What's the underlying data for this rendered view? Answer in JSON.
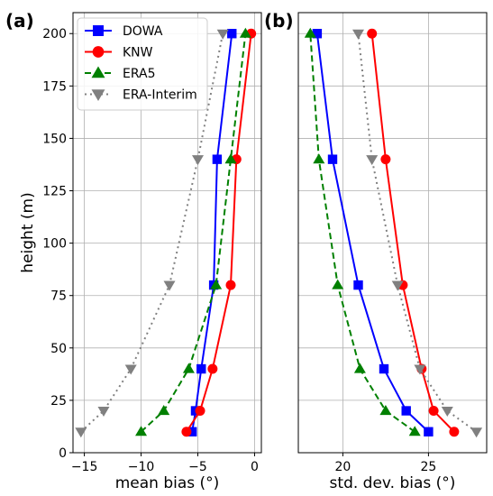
{
  "chart_data": [
    {
      "type": "line",
      "panel_label": "(a)",
      "xlabel": "mean bias (°)",
      "ylabel": "height (m)",
      "xlim": [
        -16,
        0.6
      ],
      "ylim": [
        0,
        210
      ],
      "xticks": [
        -15,
        -10,
        -5,
        0
      ],
      "yticks": [
        0,
        25,
        50,
        75,
        100,
        125,
        150,
        175,
        200
      ],
      "grid": true,
      "legend": "top-left",
      "series": [
        {
          "name": "DOWA",
          "color": "#0000ff",
          "dash": "solid",
          "marker": "square",
          "x": [
            -5.5,
            -5.2,
            -4.7,
            -3.6,
            -3.3,
            -2.0
          ],
          "y": [
            10,
            20,
            40,
            80,
            140,
            200
          ]
        },
        {
          "name": "KNW",
          "color": "#ff0000",
          "dash": "solid",
          "marker": "circle",
          "x": [
            -6.0,
            -4.8,
            -3.7,
            -2.1,
            -1.6,
            -0.3
          ],
          "y": [
            10,
            20,
            40,
            80,
            140,
            200
          ]
        },
        {
          "name": "ERA5",
          "color": "#008000",
          "dash": "dashed",
          "marker": "triangle-up",
          "x": [
            -10.0,
            -8.0,
            -5.8,
            -3.4,
            -2.1,
            -0.8
          ],
          "y": [
            10,
            20,
            40,
            80,
            140,
            200
          ]
        },
        {
          "name": "ERA-Interim",
          "color": "#808080",
          "dash": "dotted",
          "marker": "triangle-down",
          "x": [
            -15.3,
            -13.3,
            -10.9,
            -7.5,
            -5.0,
            -2.8
          ],
          "y": [
            10,
            20,
            40,
            80,
            140,
            200
          ]
        }
      ]
    },
    {
      "type": "line",
      "panel_label": "(b)",
      "xlabel": "std. dev. bias (°)",
      "ylabel": "",
      "xlim": [
        17.4,
        28.4
      ],
      "ylim": [
        0,
        210
      ],
      "xticks": [
        20,
        25
      ],
      "yticks": [],
      "grid": true,
      "legend": "",
      "series": [
        {
          "name": "DOWA",
          "color": "#0000ff",
          "dash": "solid",
          "marker": "square",
          "x": [
            25.0,
            23.7,
            22.4,
            20.9,
            19.4,
            18.5
          ],
          "y": [
            10,
            20,
            40,
            80,
            140,
            200
          ]
        },
        {
          "name": "KNW",
          "color": "#ff0000",
          "dash": "solid",
          "marker": "circle",
          "x": [
            26.5,
            25.3,
            24.6,
            23.5,
            22.5,
            21.7
          ],
          "y": [
            10,
            20,
            40,
            80,
            140,
            200
          ]
        },
        {
          "name": "ERA5",
          "color": "#008000",
          "dash": "dashed",
          "marker": "triangle-up",
          "x": [
            24.2,
            22.5,
            21.0,
            19.7,
            18.6,
            18.1
          ],
          "y": [
            10,
            20,
            40,
            80,
            140,
            200
          ]
        },
        {
          "name": "ERA-Interim",
          "color": "#808080",
          "dash": "dotted",
          "marker": "triangle-down",
          "x": [
            27.8,
            26.1,
            24.5,
            23.2,
            21.7,
            20.9
          ],
          "y": [
            10,
            20,
            40,
            80,
            140,
            200
          ]
        }
      ]
    }
  ]
}
